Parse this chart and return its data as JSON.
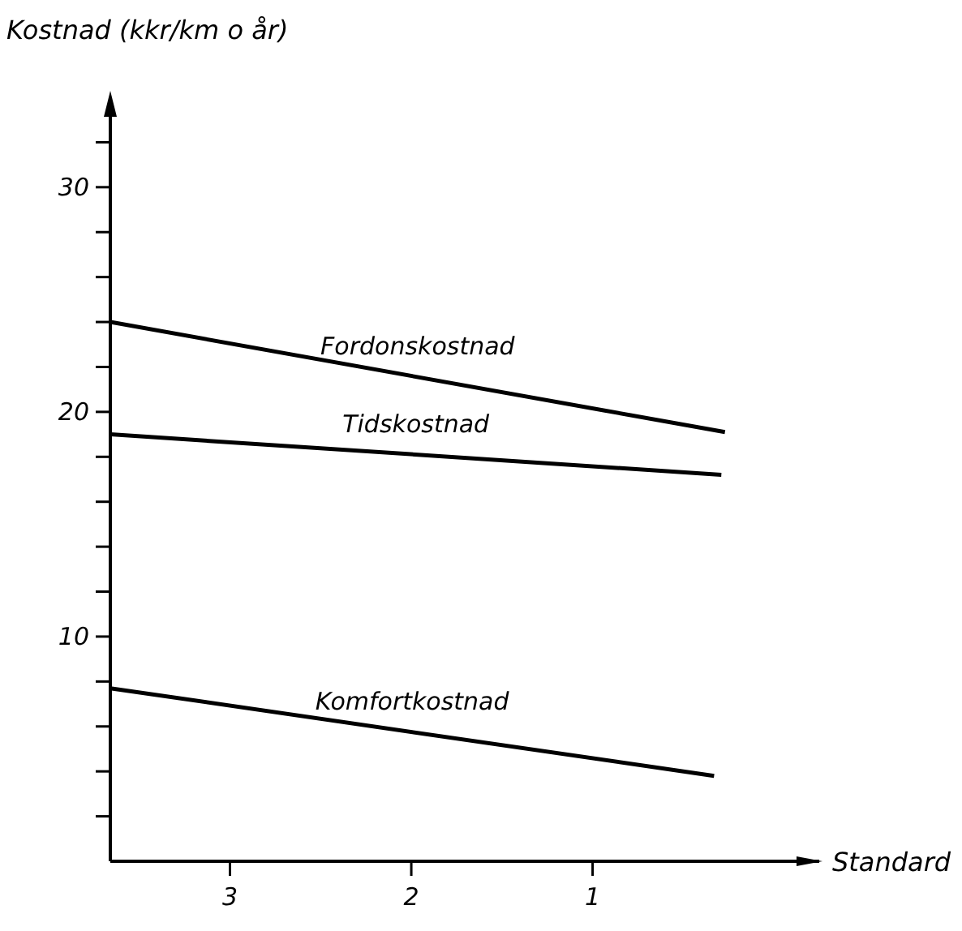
{
  "chart_data": {
    "type": "line",
    "ylabel": "Kostnad (kkr/km o år)",
    "xlabel": "Standard",
    "xlim": [
      3.66,
      -0.25
    ],
    "xticks": [
      3,
      2,
      1
    ],
    "ylim": [
      0,
      34
    ],
    "yticks": [
      {
        "value": 2,
        "label": null
      },
      {
        "value": 4,
        "label": null
      },
      {
        "value": 6,
        "label": null
      },
      {
        "value": 8,
        "label": null
      },
      10,
      {
        "value": 12,
        "label": null
      },
      {
        "value": 14,
        "label": null
      },
      {
        "value": 16,
        "label": null
      },
      {
        "value": 18,
        "label": null
      },
      20,
      {
        "value": 22,
        "label": null
      },
      {
        "value": 24,
        "label": null
      },
      {
        "value": 26,
        "label": null
      },
      {
        "value": 28,
        "label": null
      },
      30,
      {
        "value": 32,
        "label": null
      }
    ],
    "grid": false,
    "marker": "none",
    "line_style": "solid",
    "series": [
      {
        "name": "Fordonskostnad",
        "color": "#000000",
        "x": [
          3.66,
          0.27
        ],
        "values": [
          24.0,
          19.1
        ]
      },
      {
        "name": "Tidskostnad",
        "color": "#000000",
        "x": [
          3.66,
          0.29
        ],
        "values": [
          19.0,
          17.2
        ]
      },
      {
        "name": "Komfortkostnad",
        "color": "#000000",
        "x": [
          3.66,
          0.33
        ],
        "values": [
          7.7,
          3.8
        ]
      }
    ]
  }
}
